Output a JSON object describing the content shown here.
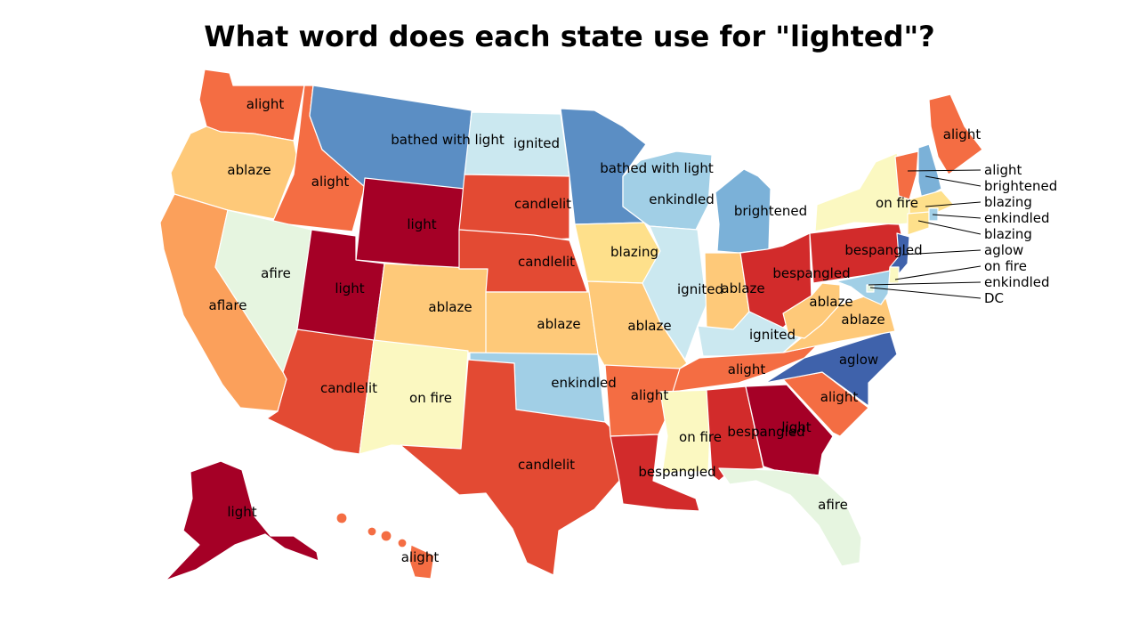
{
  "title": "What word does each state use for \"lighted\"?",
  "palette": {
    "light": "#a50026",
    "bespangled": "#d22b2b",
    "candlelit": "#e34a33",
    "alight": "#f46d43",
    "aflare": "#fba05b",
    "ablaze": "#fec979",
    "blazing": "#fee08b",
    "on fire": "#fbf8c1",
    "afire": "#e6f5e0",
    "ignited": "#cbe8f0",
    "enkindled": "#a1cfe6",
    "brightened": "#7bb1d8",
    "bathed with light": "#5b8ec4",
    "aglow": "#3f62ab",
    "DC": "#e6f5e0"
  },
  "states": {
    "WA": "alight",
    "OR": "ablaze",
    "CA": "aflare",
    "ID": "alight",
    "NV": "afire",
    "MT": "bathed with light",
    "WY": "light",
    "UT": "light",
    "AZ": "candlelit",
    "CO": "ablaze",
    "NM": "on fire",
    "ND": "ignited",
    "SD": "candlelit",
    "NE": "candlelit",
    "KS": "ablaze",
    "OK": "enkindled",
    "TX": "candlelit",
    "MN": "bathed with light",
    "IA": "blazing",
    "MO": "ablaze",
    "AR": "alight",
    "LA": "bespangled",
    "WI": "enkindled",
    "IL": "ignited",
    "MI": "brightened",
    "IN": "ablaze",
    "OH": "bespangled",
    "KY": "ignited",
    "TN": "alight",
    "MS": "on fire",
    "AL": "bespangled",
    "GA": "light",
    "FL": "afire",
    "SC": "alight",
    "NC": "aglow",
    "VA": "ablaze",
    "WV": "ablaze",
    "PA": "bespangled",
    "NY": "on fire",
    "ME": "alight",
    "VT": "alight",
    "NH": "brightened",
    "MA": "blazing",
    "RI": "enkindled",
    "CT": "blazing",
    "NJ": "aglow",
    "DE": "on fire",
    "MD": "enkindled",
    "DC": "DC",
    "AK": "light",
    "HI": "alight"
  },
  "labels": {
    "WA": "alight",
    "OR": "ablaze",
    "CA": "aflare",
    "ID": "alight",
    "NV": "afire",
    "MT": "bathed with light",
    "WY": "light",
    "UT": "light",
    "AZ": "candlelit",
    "CO": "ablaze",
    "NM": "on fire",
    "ND": "ignited",
    "SD": "candlelit",
    "NE": "candlelit",
    "KS": "ablaze",
    "OK": "enkindled",
    "TX": "candlelit",
    "MN": "bathed with light",
    "IA": "blazing",
    "MO": "ablaze",
    "AR": "alight",
    "LA": "bespangled",
    "WI": "enkindled",
    "IL": "ignited",
    "MI": "brightened",
    "IN": "ablaze",
    "OH": "bespangled",
    "KY": "ignited",
    "TN": "alight",
    "MS": "on fire",
    "AL": "bespangled",
    "GA": "light",
    "FL": "afire",
    "SC": "alight",
    "NC": "aglow",
    "VA": "ablaze",
    "WV": "ablaze",
    "PA": "bespangled",
    "NY": "on fire",
    "ME": "alight",
    "AK": "light",
    "HI": "alight"
  },
  "callouts": [
    {
      "state": "VT",
      "text": "alight"
    },
    {
      "state": "NH",
      "text": "brightened"
    },
    {
      "state": "MA",
      "text": "blazing"
    },
    {
      "state": "RI",
      "text": "enkindled"
    },
    {
      "state": "CT",
      "text": "blazing"
    },
    {
      "state": "NJ",
      "text": "aglow"
    },
    {
      "state": "DE",
      "text": "on fire"
    },
    {
      "state": "MD",
      "text": "enkindled"
    },
    {
      "state": "DC",
      "text": "DC"
    }
  ]
}
